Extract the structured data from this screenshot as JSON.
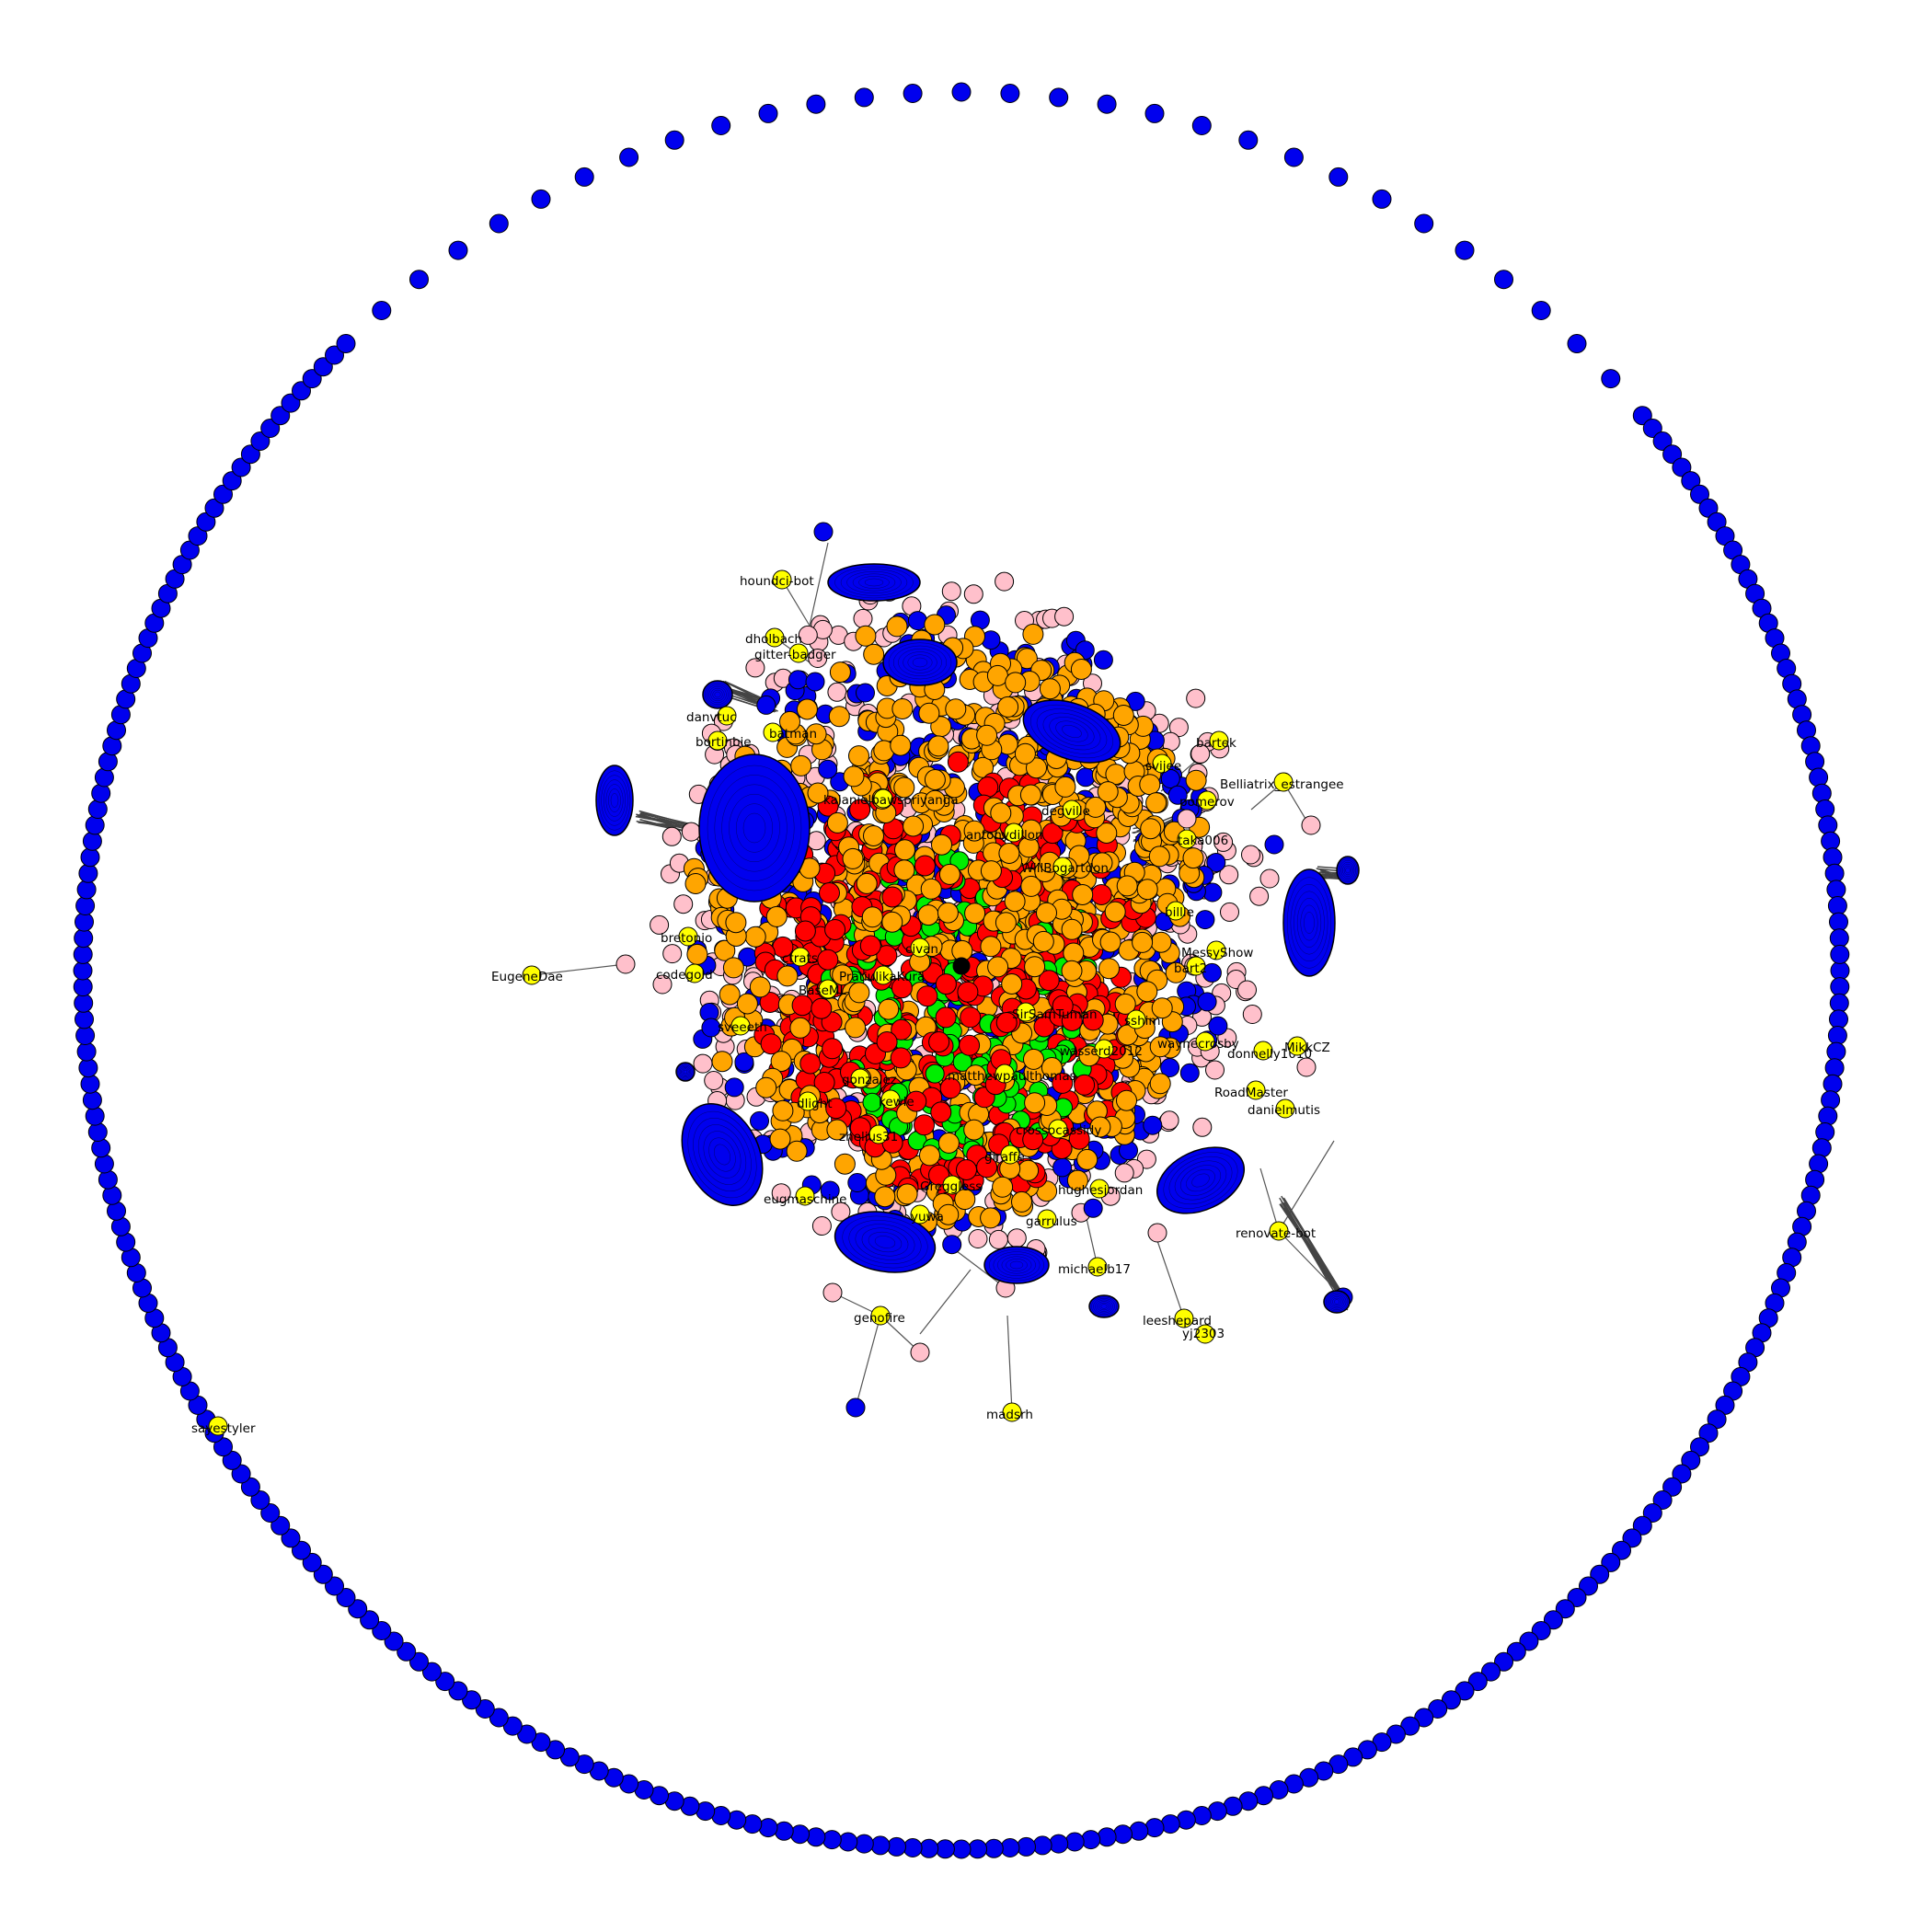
{
  "colors": {
    "blue": "#0000ee",
    "orange": "#ffa500",
    "red": "#ff0000",
    "green": "#00ee00",
    "pink": "#ffc0cb",
    "yellow": "#ffff00",
    "black": "#000000",
    "edge": "#555555"
  },
  "labels": {
    "houndci": "houndci-bot",
    "dholbach": "dholbach",
    "gitter": "gitter-badger",
    "danvtuc": "danvtuc",
    "bortinbie": "bortinbie",
    "batman": "batman",
    "bartek": "bartek",
    "svijee": "svijee",
    "belliatrix": "Belliatrix_estrangee",
    "pomerov": "pomerov",
    "antonydillon": "antonydillon",
    "degville": "degville",
    "willbogart": "WillBogartdon",
    "kalaniel": "kalanielbawspriyanga",
    "taka006": "taka006",
    "bretonio": "bretonio",
    "eugenedae": "EugeneDae",
    "codegold": "codegold",
    "baseml": "BaseML",
    "pratiulika": "PratiulikaKura",
    "civan": "civan",
    "sveeeth": "sveeeth",
    "sirsam": "SirSamTuman",
    "wasserd": "wasserd2012",
    "messyshow": "MessyShow",
    "bart2": "bart2",
    "waynecrosby": "waynecrosby",
    "donnelly": "donnelly1010",
    "mikkcz": "MikkCZ",
    "roadmaster": "RoadMaster",
    "danielmutis": "danielmutis",
    "matthew": "matthewpaulthomas",
    "gonzalez": "gonzalez",
    "dlight": "dlight",
    "kewie": "kewie",
    "zhelius": "zhelius31",
    "cassidy": "crossocassidy",
    "giraffe": "giraffe",
    "greggless": "Greggless",
    "yuwa": "yuwa",
    "garrulus": "garrulus",
    "michaelb17": "michaelb17",
    "hughesjordan": "hughesjordan",
    "renovate": "renovate-bot",
    "genofire": "genofire",
    "leeshepard": "leeshepard",
    "yj2303": "yj2303",
    "madsrh": "madsrh",
    "sayestyler": "sayestyler",
    "eugmaschine": "eugmaschine",
    "billie": "billie",
    "sshim": "sshim",
    "ctrats": "ctrats"
  }
}
